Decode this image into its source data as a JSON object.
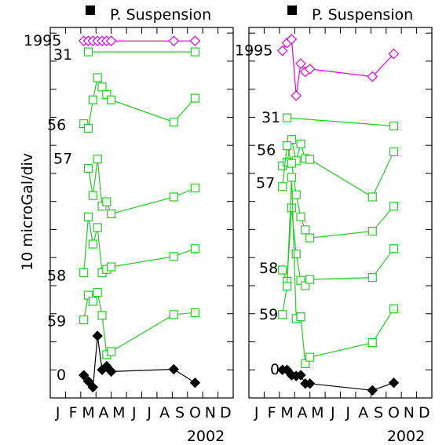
{
  "chart_data": {
    "type": "line",
    "ylabel": "10 microGal/div",
    "year_label": "2002",
    "month_ticks": [
      "J",
      "F",
      "M",
      "A",
      "M",
      "J",
      "J",
      "A",
      "S",
      "O",
      "N",
      "D"
    ],
    "colors": {
      "magenta": "#e000e0",
      "green": "#22cc22",
      "black": "#000000"
    },
    "panels": [
      {
        "title": "P. Suspension",
        "legend_icon": "filled-square-icon",
        "series": [
          {
            "label": "1995",
            "color": "#e000e0",
            "marker": "diamond-open",
            "x": [
              2.7,
              3.0,
              3.3,
              3.6,
              3.9,
              4.2,
              4.5,
              8.6,
              10.0
            ],
            "y": [
              12.72,
              12.72,
              12.72,
              12.72,
              12.72,
              12.72,
              12.72,
              12.72,
              12.72
            ]
          },
          {
            "label": "31",
            "color": "#22cc22",
            "marker": "square-open",
            "x": [
              3.0,
              10.0
            ],
            "y": [
              12.33,
              12.33
            ]
          },
          {
            "label": "56",
            "color": "#22cc22",
            "marker": "square-open",
            "x": [
              2.7,
              3.0,
              3.3,
              3.6,
              3.9,
              4.2,
              4.5,
              8.6,
              10.0
            ],
            "y": [
              9.77,
              9.61,
              10.62,
              11.41,
              11.08,
              10.81,
              10.62,
              9.83,
              10.68
            ]
          },
          {
            "label": "57",
            "color": "#22cc22",
            "marker": "square-open",
            "x": [
              3.0,
              3.3,
              3.6,
              3.9,
              4.2,
              4.5,
              8.6,
              10.0
            ],
            "y": [
              8.18,
              7.21,
              8.51,
              6.83,
              6.99,
              6.56,
              7.16,
              7.48
            ]
          },
          {
            "label": "58",
            "color": "#22cc22",
            "marker": "square-open",
            "x": [
              2.7,
              3.0,
              3.3,
              3.6,
              3.9,
              4.2,
              4.5,
              8.6,
              10.0
            ],
            "y": [
              4.46,
              6.45,
              5.48,
              6.07,
              4.46,
              4.58,
              4.67,
              5.04,
              5.32
            ]
          },
          {
            "label": "59",
            "color": "#22cc22",
            "marker": "square-open",
            "x": [
              2.7,
              3.0,
              3.3,
              3.6,
              3.9,
              4.2,
              4.5,
              8.6,
              10.0
            ],
            "y": [
              2.78,
              3.66,
              3.44,
              3.76,
              2.94,
              1.54,
              1.65,
              2.97,
              3.04
            ]
          },
          {
            "label": "0",
            "color": "#000000",
            "marker": "diamond-filled",
            "x": [
              2.7,
              3.0,
              3.3,
              3.6,
              3.9,
              4.2,
              4.5,
              8.6,
              10.0
            ],
            "y": [
              0.81,
              0.59,
              0.38,
              2.21,
              1.0,
              1.13,
              0.94,
              1.02,
              0.54
            ]
          }
        ]
      },
      {
        "title": "P. Suspension",
        "legend_icon": "filled-square-icon",
        "series": [
          {
            "label": "1995",
            "color": "#e000e0",
            "marker": "diamond-open",
            "x": [
              2.7,
              3.0,
              3.3,
              3.6,
              3.9,
              4.2,
              4.5,
              8.6,
              10.0
            ],
            "y": [
              12.37,
              12.65,
              12.78,
              10.77,
              11.91,
              11.62,
              11.72,
              11.45,
              12.26
            ]
          },
          {
            "label": "31",
            "color": "#22cc22",
            "marker": "square-open",
            "x": [
              3.0,
              10.0
            ],
            "y": [
              9.98,
              9.69
            ]
          },
          {
            "label": "56",
            "color": "#22cc22",
            "marker": "square-open",
            "x": [
              2.7,
              3.0,
              3.3,
              3.6,
              3.9,
              4.2,
              4.5,
              8.6,
              10.0
            ],
            "y": [
              8.27,
              8.4,
              9.21,
              8.45,
              9.05,
              8.53,
              8.5,
              7.16,
              8.77
            ]
          },
          {
            "label": "57",
            "color": "#22cc22",
            "marker": "square-open",
            "x": [
              2.7,
              3.0,
              3.3,
              3.6,
              3.9,
              4.2,
              4.5,
              8.6,
              10.0
            ],
            "y": [
              7.53,
              8.99,
              8.36,
              7.24,
              6.45,
              5.99,
              5.7,
              5.94,
              6.83
            ]
          },
          {
            "label": "58",
            "color": "#22cc22",
            "marker": "square-open",
            "x": [
              2.7,
              3.0,
              3.3,
              3.6,
              3.9,
              4.2,
              4.5,
              8.6,
              10.0
            ],
            "y": [
              4.56,
              4.16,
              6.77,
              5.13,
              4.19,
              4.0,
              4.22,
              4.29,
              5.32
            ]
          },
          {
            "label": "59",
            "color": "#22cc22",
            "marker": "square-open",
            "x": [
              2.7,
              3.0,
              3.3,
              3.6,
              3.9,
              4.2,
              4.5,
              8.6,
              10.0
            ],
            "y": [
              2.97,
              3.98,
              7.86,
              2.83,
              2.89,
              1.22,
              1.45,
              1.97,
              3.17
            ]
          },
          {
            "label": "0",
            "color": "#000000",
            "marker": "diamond-filled",
            "x": [
              2.7,
              3.0,
              3.3,
              3.6,
              3.9,
              4.2,
              4.5,
              8.6,
              10.0
            ],
            "y": [
              1.0,
              1.0,
              0.81,
              0.78,
              0.81,
              0.51,
              0.51,
              0.27,
              0.54
            ]
          }
        ]
      }
    ]
  }
}
